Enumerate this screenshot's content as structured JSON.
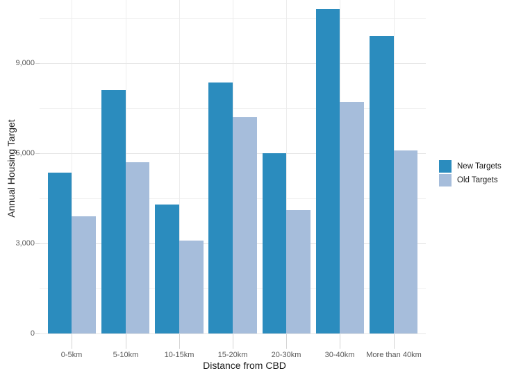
{
  "chart_data": {
    "type": "bar",
    "title": "",
    "categories": [
      "0-5km",
      "5-10km",
      "10-15km",
      "15-20km",
      "20-30km",
      "30-40km",
      "More than 40km"
    ],
    "series": [
      {
        "name": "New Targets",
        "color": "#2B8CBE",
        "values": [
          5350,
          8100,
          4300,
          8350,
          6000,
          10800,
          9900
        ]
      },
      {
        "name": "Old Targets",
        "color": "#A6BDDB",
        "values": [
          3900,
          5700,
          3100,
          7200,
          4100,
          7700,
          6100
        ]
      }
    ],
    "xlabel": "Distance from CBD",
    "ylabel": "Annual Housing Target",
    "ylim": [
      0,
      11100
    ],
    "yticks": [
      {
        "value": 0,
        "label": "0"
      },
      {
        "value": 3000,
        "label": "3,000"
      },
      {
        "value": 6000,
        "label": "6,000"
      },
      {
        "value": 9000,
        "label": "9,000"
      }
    ],
    "yticks_minor": [
      1500,
      4500,
      7500,
      10500
    ],
    "grid": true,
    "legend_position": "right",
    "bar_layout": {
      "dodge": true,
      "group_width_fraction": 0.9
    }
  },
  "colors": {
    "background": "#FFFFFF",
    "grid_major": "#E6E6E6",
    "grid_minor": "#F2F2F2",
    "grid_vertical": "#ECECEC",
    "tick": "#D4D4D4",
    "tick_label": "#595959",
    "axis_title": "#1A1A1A",
    "legend_text": "#1A1A1A"
  }
}
